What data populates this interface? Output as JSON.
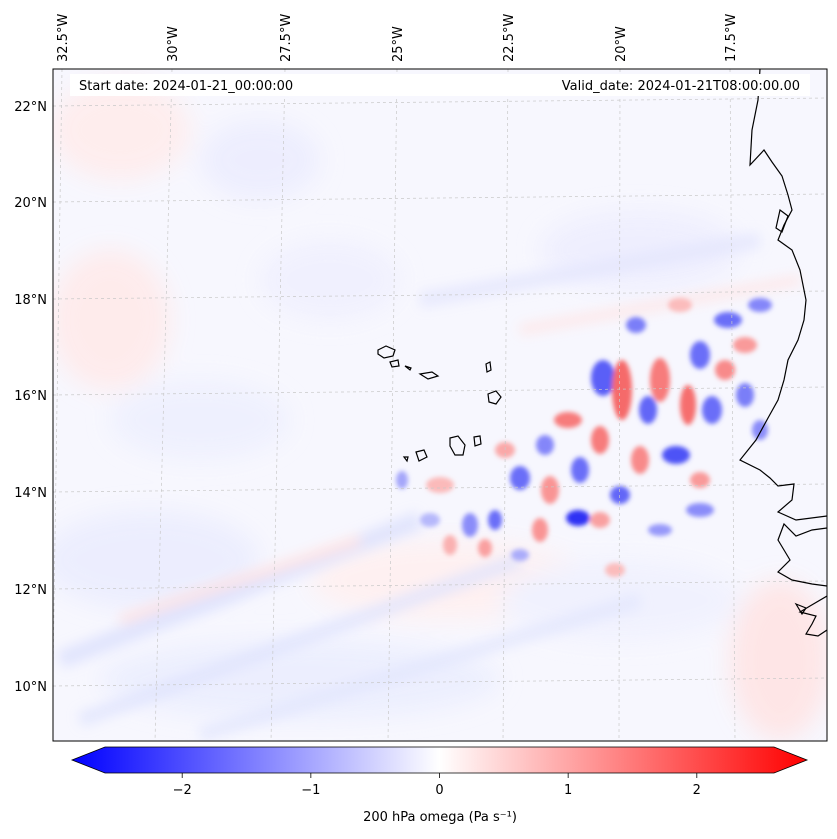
{
  "header": {
    "start_date": "Start date: 2024-01-21_00:00:00",
    "valid_date": "Valid_date: 2024-01-21T08:00:00.00"
  },
  "axes": {
    "lon_labels": [
      "32.5°W",
      "30°W",
      "27.5°W",
      "25°W",
      "22.5°W",
      "20°W",
      "17.5°W"
    ],
    "lat_labels": [
      "22°N",
      "20°N",
      "18°N",
      "16°N",
      "14°N",
      "12°N",
      "10°N"
    ]
  },
  "colorbar": {
    "ticks": [
      "−2",
      "−1",
      "0",
      "1",
      "2"
    ],
    "tick_values": [
      -2,
      -1,
      0,
      1,
      2
    ],
    "range": [
      -2.6,
      2.6
    ],
    "label": "200 hPa omega (Pa s⁻¹)",
    "cmap": [
      "#0000ff",
      "#ffffff",
      "#ff0000"
    ]
  },
  "map": {
    "field": "200 hPa omega",
    "colors": {
      "coastline": "#000000",
      "gridline": "#c8c8c8",
      "negative": "#0000ff",
      "positive": "#ff0000"
    }
  }
}
